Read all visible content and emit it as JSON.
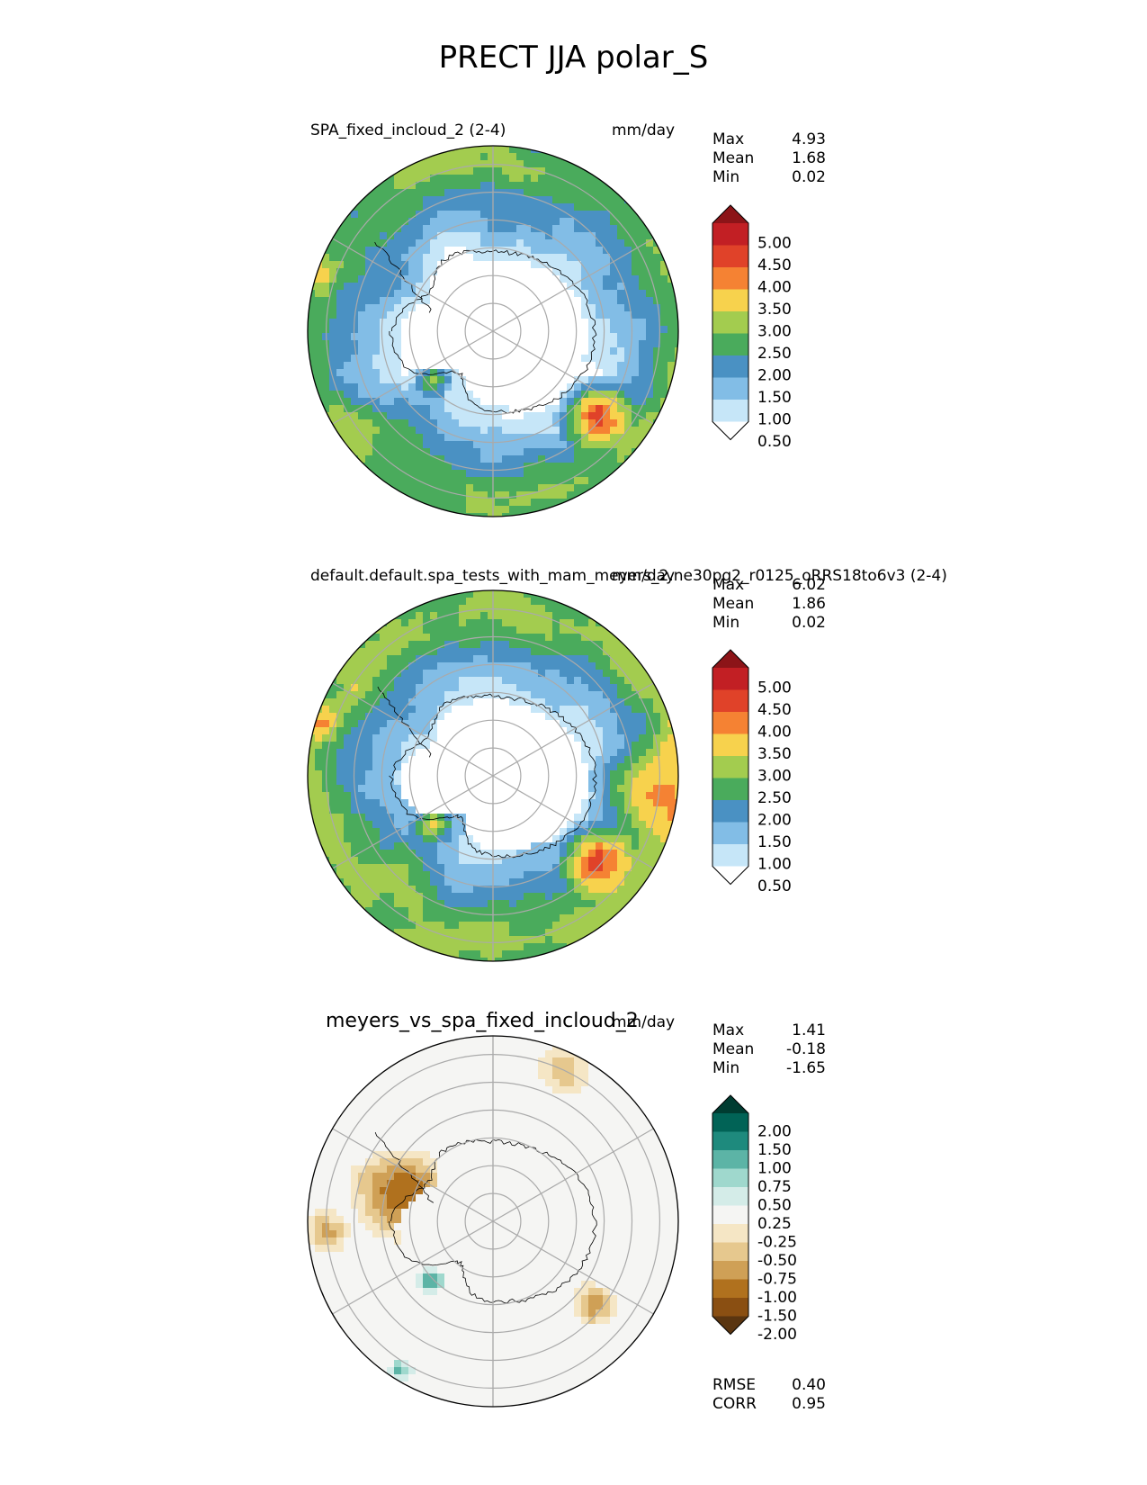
{
  "title": "PRECT JJA polar_S",
  "colors": {
    "precip": [
      "#ffffff",
      "#c6e6f8",
      "#82bde6",
      "#4a91c3",
      "#4aab5c",
      "#a3cc4f",
      "#f7d24d",
      "#f58233",
      "#e04229",
      "#c21f24",
      "#8c1418"
    ],
    "diff": [
      "#5a3510",
      "#8a4f12",
      "#b0711e",
      "#cfa056",
      "#e6c88e",
      "#f5e6c5",
      "#f5f5f3",
      "#d4ece8",
      "#9fd8cd",
      "#5cb4a6",
      "#1e8a7d",
      "#016356",
      "#003c31"
    ],
    "land_contour": "#000000",
    "grid": "#aaaaaa"
  },
  "panels": [
    {
      "name": "test",
      "title": "SPA_fixed_incloud_2 (2-4)",
      "units": "mm/day",
      "stats": [
        {
          "label": "Max",
          "value": "4.93"
        },
        {
          "label": "Mean",
          "value": "1.68"
        },
        {
          "label": "Min",
          "value": "0.02"
        }
      ],
      "colorbar_ticks": [
        "5.00",
        "4.50",
        "4.00",
        "3.50",
        "3.00",
        "2.50",
        "2.00",
        "1.50",
        "1.00",
        "0.50"
      ]
    },
    {
      "name": "reference",
      "title": "default.default.spa_tests_with_mam_meyers_2.ne30pg2_r0125_oRRS18to6v3 (2-4)",
      "units": "mm/day",
      "stats": [
        {
          "label": "Max",
          "value": "6.02"
        },
        {
          "label": "Mean",
          "value": "1.86"
        },
        {
          "label": "Min",
          "value": "0.02"
        }
      ],
      "colorbar_ticks": [
        "5.00",
        "4.50",
        "4.00",
        "3.50",
        "3.00",
        "2.50",
        "2.00",
        "1.50",
        "1.00",
        "0.50"
      ]
    },
    {
      "name": "difference",
      "title": "meyers_vs_spa_fixed_incloud_2",
      "units": "mm/day",
      "stats": [
        {
          "label": "Max",
          "value": "1.41"
        },
        {
          "label": "Mean",
          "value": "-0.18"
        },
        {
          "label": "Min",
          "value": "-1.65"
        }
      ],
      "colorbar_ticks": [
        "2.00",
        "1.50",
        "1.00",
        "0.75",
        "0.50",
        "0.25",
        "-0.25",
        "-0.50",
        "-0.75",
        "-1.00",
        "-1.50",
        "-2.00"
      ],
      "extra_stats": [
        {
          "label": "RMSE",
          "value": "0.40"
        },
        {
          "label": "CORR",
          "value": "0.95"
        }
      ]
    }
  ],
  "chart_data": {
    "type": "heatmap",
    "projection": "south polar stereographic",
    "variable": "PRECT",
    "season": "JJA",
    "region": "polar_S",
    "units": "mm/day",
    "precip_levels": [
      0.5,
      1.0,
      1.5,
      2.0,
      2.5,
      3.0,
      3.5,
      4.0,
      4.5,
      5.0
    ],
    "diff_levels": [
      -2.0,
      -1.5,
      -1.0,
      -0.75,
      -0.5,
      -0.25,
      0.25,
      0.5,
      0.75,
      1.0,
      1.5,
      2.0
    ],
    "series": [
      {
        "name": "SPA_fixed_incloud_2 (2-4)",
        "max": 4.93,
        "mean": 1.68,
        "min": 0.02
      },
      {
        "name": "default.default.spa_tests_with_mam_meyers_2.ne30pg2_r0125_oRRS18to6v3 (2-4)",
        "max": 6.02,
        "mean": 1.86,
        "min": 0.02
      },
      {
        "name": "meyers_vs_spa_fixed_incloud_2",
        "max": 1.41,
        "mean": -0.18,
        "min": -1.65,
        "rmse": 0.4,
        "corr": 0.95
      }
    ]
  }
}
